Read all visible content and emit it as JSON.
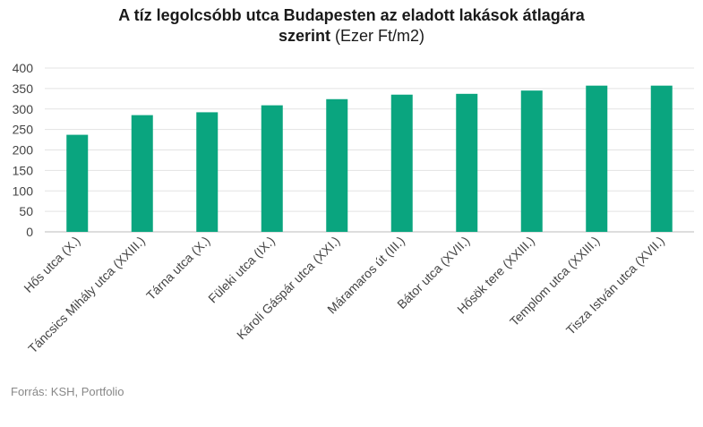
{
  "title": {
    "line1": "A tíz legolcsóbb utca Budapesten az eladott lakások átlagára",
    "line2_bold": "szerint",
    "line2_normal": "(Ezer Ft/m2)"
  },
  "source": "Forrás: KSH, Portfolio",
  "colors": {
    "bar": "#0aa57f",
    "grid": "#e3e3e3",
    "axis": "#bbbbbb",
    "text": "#444444"
  },
  "chart_data": {
    "type": "bar",
    "categories": [
      "Hős utca (X.)",
      "Táncsics Mihály utca (XXIII.)",
      "Tárna utca (X.)",
      "Füleki utca (IX.)",
      "Károli Gáspár utca (XXI.)",
      "Máramaros út (III.)",
      "Bátor utca (XVII.)",
      "Hősök tere (XXIII.)",
      "Templom utca (XXIII.)",
      "Tisza István utca (XVII.)"
    ],
    "values": [
      237,
      285,
      292,
      309,
      324,
      335,
      337,
      345,
      357,
      357
    ],
    "ylim": [
      0,
      400
    ],
    "yticks": [
      0,
      50,
      100,
      150,
      200,
      250,
      300,
      350,
      400
    ],
    "grid": true,
    "legend": false
  }
}
